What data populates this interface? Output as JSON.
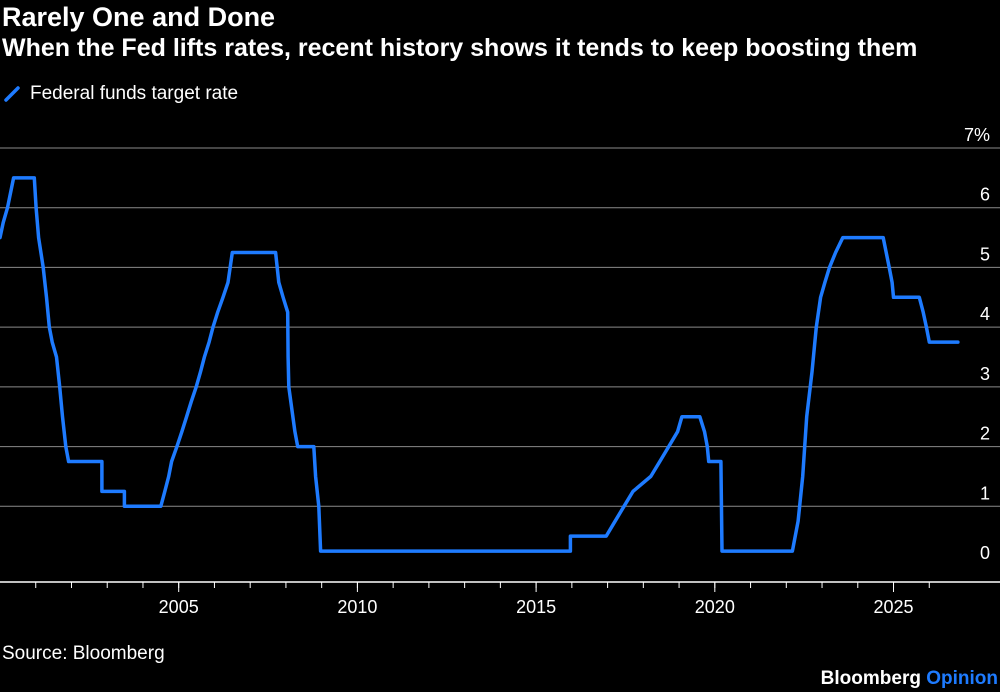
{
  "title": "Rarely One and Done",
  "subtitle": "When the Fed lifts rates, recent history shows it tends to keep boosting them",
  "source": "Source: Bloomberg",
  "brand": {
    "name": "Bloomberg",
    "accent": "Opinion"
  },
  "colors": {
    "line": "#1e7bff",
    "grid": "#8a8a8a",
    "background": "#000000"
  },
  "legend_icon": "diagonal-stroke-icon",
  "chart_data": {
    "type": "line",
    "title": "Rarely One and Done",
    "subtitle": "When the Fed lifts rates, recent history shows it tends to keep boosting them",
    "xlabel": "",
    "ylabel": "",
    "xlim": [
      2000.0,
      2027.0
    ],
    "ylim": [
      0,
      7
    ],
    "y_axis_position": "right",
    "grid": "horizontal",
    "legend_position": "top-left",
    "x_ticks": [
      {
        "value": 2005,
        "label": "2005"
      },
      {
        "value": 2010,
        "label": "2010"
      },
      {
        "value": 2015,
        "label": "2015"
      },
      {
        "value": 2020,
        "label": "2020"
      },
      {
        "value": 2025,
        "label": "2025"
      }
    ],
    "y_ticks": [
      {
        "value": 0,
        "label": "0"
      },
      {
        "value": 1,
        "label": "1"
      },
      {
        "value": 2,
        "label": "2"
      },
      {
        "value": 3,
        "label": "3"
      },
      {
        "value": 4,
        "label": "4"
      },
      {
        "value": 5,
        "label": "5"
      },
      {
        "value": 6,
        "label": "6"
      },
      {
        "value": 7,
        "label": "7%"
      }
    ],
    "series": [
      {
        "name": "Federal funds target rate",
        "color": "#1e7bff",
        "points": [
          [
            2000.0,
            5.5
          ],
          [
            2000.09,
            5.75
          ],
          [
            2000.21,
            6.0
          ],
          [
            2000.38,
            6.5
          ],
          [
            2000.96,
            6.5
          ],
          [
            2001.01,
            6.0
          ],
          [
            2001.08,
            5.5
          ],
          [
            2001.21,
            5.0
          ],
          [
            2001.3,
            4.5
          ],
          [
            2001.38,
            4.0
          ],
          [
            2001.46,
            3.75
          ],
          [
            2001.58,
            3.5
          ],
          [
            2001.67,
            3.0
          ],
          [
            2001.75,
            2.5
          ],
          [
            2001.84,
            2.0
          ],
          [
            2001.92,
            1.75
          ],
          [
            2002.85,
            1.75
          ],
          [
            2002.85,
            1.25
          ],
          [
            2003.48,
            1.25
          ],
          [
            2003.48,
            1.0
          ],
          [
            2004.5,
            1.0
          ],
          [
            2004.61,
            1.25
          ],
          [
            2004.72,
            1.5
          ],
          [
            2004.8,
            1.75
          ],
          [
            2004.95,
            2.0
          ],
          [
            2005.09,
            2.25
          ],
          [
            2005.22,
            2.5
          ],
          [
            2005.35,
            2.75
          ],
          [
            2005.49,
            3.0
          ],
          [
            2005.61,
            3.25
          ],
          [
            2005.72,
            3.5
          ],
          [
            2005.85,
            3.75
          ],
          [
            2005.96,
            4.0
          ],
          [
            2006.09,
            4.25
          ],
          [
            2006.24,
            4.5
          ],
          [
            2006.38,
            4.75
          ],
          [
            2006.5,
            5.25
          ],
          [
            2007.71,
            5.25
          ],
          [
            2007.8,
            4.75
          ],
          [
            2007.92,
            4.5
          ],
          [
            2008.05,
            4.25
          ],
          [
            2008.06,
            3.5
          ],
          [
            2008.08,
            3.0
          ],
          [
            2008.25,
            2.25
          ],
          [
            2008.33,
            2.0
          ],
          [
            2008.78,
            2.0
          ],
          [
            2008.83,
            1.5
          ],
          [
            2008.92,
            1.0
          ],
          [
            2008.97,
            0.25
          ],
          [
            2015.96,
            0.25
          ],
          [
            2015.96,
            0.5
          ],
          [
            2016.96,
            0.5
          ],
          [
            2017.21,
            0.75
          ],
          [
            2017.46,
            1.0
          ],
          [
            2017.71,
            1.25
          ],
          [
            2018.21,
            1.5
          ],
          [
            2018.46,
            1.75
          ],
          [
            2018.71,
            2.0
          ],
          [
            2018.96,
            2.25
          ],
          [
            2019.08,
            2.5
          ],
          [
            2019.58,
            2.5
          ],
          [
            2019.71,
            2.25
          ],
          [
            2019.79,
            2.0
          ],
          [
            2019.83,
            1.75
          ],
          [
            2020.17,
            1.75
          ],
          [
            2020.2,
            0.25
          ],
          [
            2022.17,
            0.25
          ],
          [
            2022.33,
            0.75
          ],
          [
            2022.46,
            1.5
          ],
          [
            2022.57,
            2.5
          ],
          [
            2022.72,
            3.25
          ],
          [
            2022.84,
            4.0
          ],
          [
            2022.96,
            4.5
          ],
          [
            2023.08,
            4.75
          ],
          [
            2023.21,
            5.0
          ],
          [
            2023.38,
            5.25
          ],
          [
            2023.58,
            5.5
          ],
          [
            2024.71,
            5.5
          ],
          [
            2024.88,
            5.0
          ],
          [
            2024.96,
            4.75
          ],
          [
            2025.0,
            4.5
          ],
          [
            2025.72,
            4.5
          ],
          [
            2025.83,
            4.25
          ],
          [
            2025.92,
            4.0
          ],
          [
            2026.0,
            3.75
          ],
          [
            2026.8,
            3.75
          ]
        ]
      }
    ]
  }
}
